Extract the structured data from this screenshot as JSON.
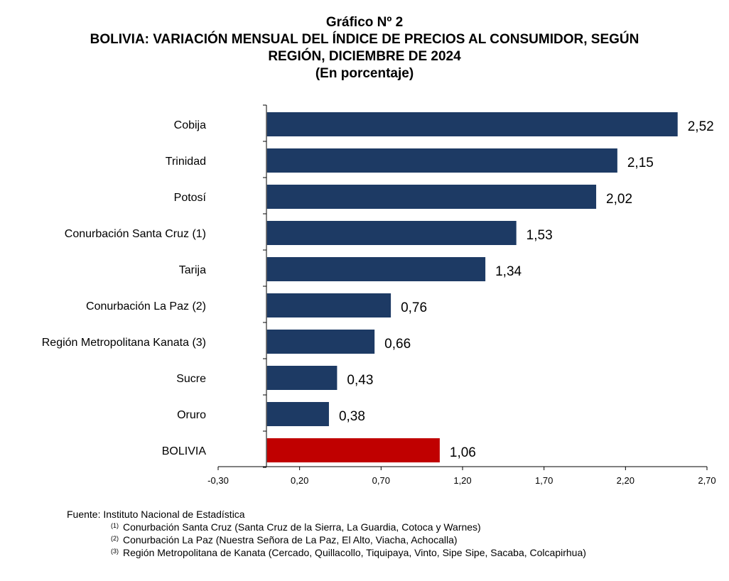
{
  "chart_data": {
    "type": "bar",
    "orientation": "horizontal",
    "title_lines": [
      "Gráfico Nº 2",
      "BOLIVIA: VARIACIÓN MENSUAL DEL ÍNDICE DE PRECIOS AL CONSUMIDOR, SEGÚN",
      "REGIÓN, DICIEMBRE DE 2024",
      "(En porcentaje)"
    ],
    "categories": [
      "Cobija",
      "Trinidad",
      "Potosí",
      "Conurbación Santa Cruz (1)",
      "Tarija",
      "Conurbación La Paz (2)",
      "Región Metropolitana Kanata (3)",
      "Sucre",
      "Oruro",
      "BOLIVIA"
    ],
    "values": [
      2.52,
      2.15,
      2.02,
      1.53,
      1.34,
      0.76,
      0.66,
      0.43,
      0.38,
      1.06
    ],
    "value_labels": [
      "2,52",
      "2,15",
      "2,02",
      "1,53",
      "1,34",
      "0,76",
      "0,66",
      "0,43",
      "0,38",
      "1,06"
    ],
    "x_ticks": [
      -0.3,
      0.2,
      0.7,
      1.2,
      1.7,
      2.2,
      2.7
    ],
    "x_tick_labels": [
      "-0,30",
      "0,20",
      "0,70",
      "1,20",
      "1,70",
      "2,20",
      "2,70"
    ],
    "xlim": [
      -0.3,
      2.7
    ],
    "bar_colors": [
      "#1d3a64",
      "#1d3a64",
      "#1d3a64",
      "#1d3a64",
      "#1d3a64",
      "#1d3a64",
      "#1d3a64",
      "#1d3a64",
      "#1d3a64",
      "#c00000"
    ],
    "grid": false,
    "legend": "none"
  },
  "footnotes": {
    "source": "Fuente: Instituto Nacional de Estadística",
    "notes": [
      {
        "marker": "(1)",
        "text": "Conurbación Santa Cruz (Santa Cruz de la Sierra, La Guardia, Cotoca y Warnes)"
      },
      {
        "marker": "(2)",
        "text": "Conurbación La Paz (Nuestra Señora de La Paz, El Alto, Viacha, Achocalla)"
      },
      {
        "marker": "(3)",
        "text": "Región Metropolitana de Kanata (Cercado, Quillacollo, Tiquipaya, Vinto, Sipe Sipe, Sacaba, Colcapirhua)"
      }
    ]
  }
}
